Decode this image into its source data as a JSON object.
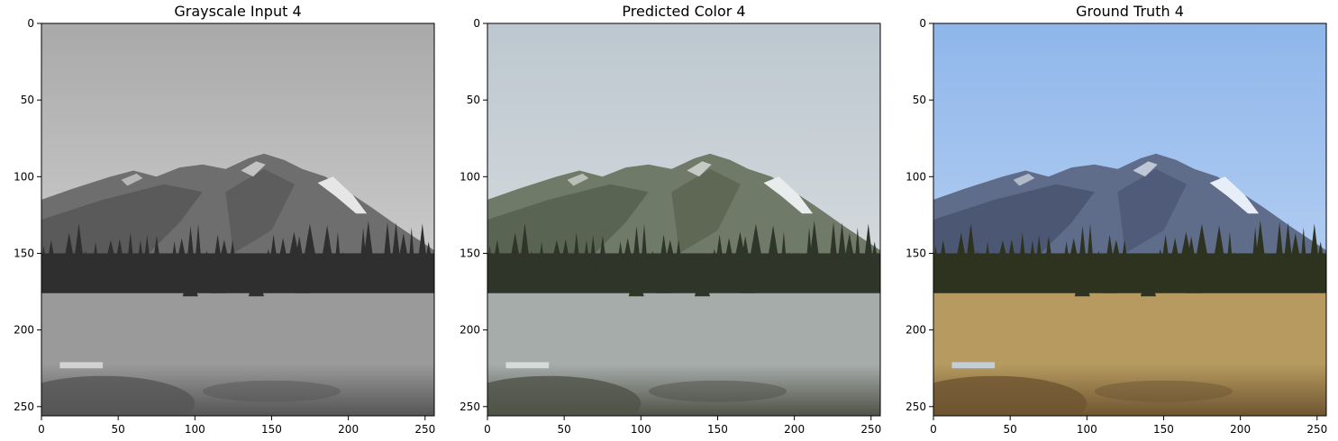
{
  "chart_data": [
    {
      "type": "image",
      "title": "Grayscale Input 4",
      "palette": "grayscale",
      "xlim": [
        0,
        256
      ],
      "ylim": [
        256,
        0
      ],
      "xticks": [
        0,
        50,
        100,
        150,
        200,
        250
      ],
      "yticks": [
        0,
        50,
        100,
        150,
        200,
        250
      ]
    },
    {
      "type": "image",
      "title": "Predicted Color 4",
      "palette": "predicted",
      "xlim": [
        0,
        256
      ],
      "ylim": [
        256,
        0
      ],
      "xticks": [
        0,
        50,
        100,
        150,
        200,
        250
      ],
      "yticks": [
        0,
        50,
        100,
        150,
        200,
        250
      ]
    },
    {
      "type": "image",
      "title": "Ground Truth 4",
      "palette": "truth",
      "xlim": [
        0,
        256
      ],
      "ylim": [
        256,
        0
      ],
      "xticks": [
        0,
        50,
        100,
        150,
        200,
        250
      ],
      "yticks": [
        0,
        50,
        100,
        150,
        200,
        250
      ]
    }
  ],
  "colors": {
    "grayscale": {
      "sky_top": "#a9a9a9",
      "sky_bottom": "#e0e0e0",
      "mountain": "#6e6e6e",
      "mountain_dark": "#4a4a4a",
      "snow": "#e6e6e6",
      "forest": "#2f2f2f",
      "meadow": "#9a9a9a",
      "meadow_dark": "#555555"
    },
    "predicted": {
      "sky_top": "#bcc7cf",
      "sky_bottom": "#e3e6e6",
      "mountain": "#6f7a68",
      "mountain_dark": "#49523f",
      "snow": "#e9ecec",
      "forest": "#2f3529",
      "meadow": "#a6acaa",
      "meadow_dark": "#4f5247"
    },
    "truth": {
      "sky_top": "#8fb6ea",
      "sky_bottom": "#c6dbf7",
      "mountain": "#5f6c8a",
      "mountain_dark": "#3d4763",
      "snow": "#e8eef7",
      "forest": "#2e3320",
      "meadow": "#b69a5f",
      "meadow_dark": "#6e5531"
    }
  }
}
